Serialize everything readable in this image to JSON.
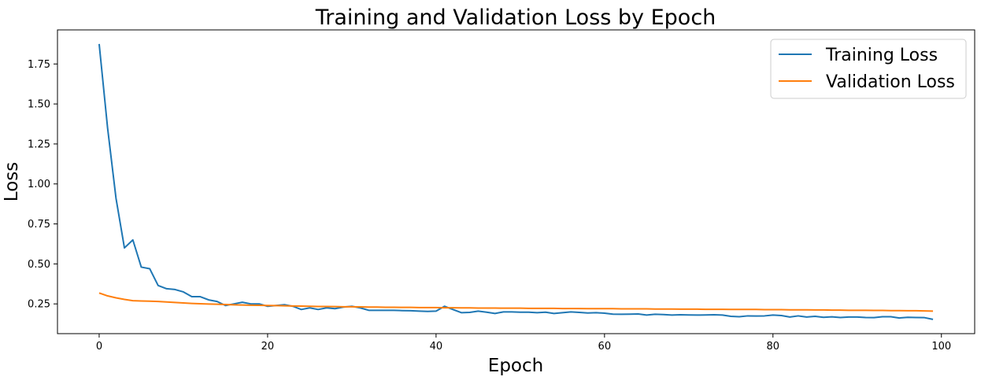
{
  "chart_data": {
    "type": "line",
    "title": "Training and Validation Loss by Epoch",
    "xlabel": "Epoch",
    "ylabel": "Loss",
    "xlim": [
      -4.95,
      103.95
    ],
    "ylim": [
      0.064,
      1.963
    ],
    "xticks": [
      0,
      20,
      40,
      60,
      80,
      100
    ],
    "xtick_labels": [
      "0",
      "20",
      "40",
      "60",
      "80",
      "100"
    ],
    "yticks": [
      0.25,
      0.5,
      0.75,
      1.0,
      1.25,
      1.5,
      1.75
    ],
    "ytick_labels": [
      "0.25",
      "0.50",
      "0.75",
      "1.00",
      "1.25",
      "1.50",
      "1.75"
    ],
    "grid": false,
    "legend": "top-right",
    "series": [
      {
        "name": "Training Loss",
        "color": "#1f77b4",
        "values": [
          1.875,
          1.35,
          0.91,
          0.6,
          0.65,
          0.48,
          0.47,
          0.365,
          0.345,
          0.34,
          0.325,
          0.295,
          0.295,
          0.275,
          0.265,
          0.24,
          0.25,
          0.26,
          0.25,
          0.25,
          0.235,
          0.24,
          0.245,
          0.235,
          0.215,
          0.225,
          0.215,
          0.225,
          0.22,
          0.23,
          0.235,
          0.225,
          0.21,
          0.21,
          0.21,
          0.21,
          0.208,
          0.207,
          0.205,
          0.203,
          0.205,
          0.235,
          0.215,
          0.195,
          0.197,
          0.205,
          0.198,
          0.19,
          0.2,
          0.2,
          0.198,
          0.198,
          0.195,
          0.198,
          0.19,
          0.195,
          0.2,
          0.197,
          0.193,
          0.195,
          0.192,
          0.186,
          0.185,
          0.186,
          0.187,
          0.18,
          0.185,
          0.183,
          0.18,
          0.182,
          0.181,
          0.18,
          0.181,
          0.182,
          0.18,
          0.172,
          0.17,
          0.175,
          0.174,
          0.175,
          0.18,
          0.177,
          0.168,
          0.175,
          0.168,
          0.172,
          0.166,
          0.169,
          0.165,
          0.168,
          0.168,
          0.165,
          0.164,
          0.17,
          0.17,
          0.162,
          0.166,
          0.165,
          0.164,
          0.153
        ]
      },
      {
        "name": "Validation Loss",
        "color": "#ff7f0e",
        "values": [
          0.318,
          0.3,
          0.288,
          0.278,
          0.27,
          0.268,
          0.267,
          0.265,
          0.262,
          0.259,
          0.256,
          0.253,
          0.251,
          0.249,
          0.248,
          0.246,
          0.244,
          0.243,
          0.242,
          0.241,
          0.24,
          0.239,
          0.238,
          0.237,
          0.236,
          0.235,
          0.234,
          0.234,
          0.233,
          0.232,
          0.232,
          0.231,
          0.23,
          0.23,
          0.229,
          0.229,
          0.228,
          0.228,
          0.227,
          0.227,
          0.227,
          0.226,
          0.226,
          0.225,
          0.225,
          0.224,
          0.224,
          0.224,
          0.223,
          0.223,
          0.223,
          0.222,
          0.222,
          0.222,
          0.222,
          0.221,
          0.221,
          0.221,
          0.22,
          0.22,
          0.22,
          0.22,
          0.219,
          0.219,
          0.219,
          0.219,
          0.218,
          0.218,
          0.218,
          0.217,
          0.217,
          0.217,
          0.216,
          0.216,
          0.216,
          0.215,
          0.215,
          0.215,
          0.215,
          0.214,
          0.214,
          0.214,
          0.213,
          0.213,
          0.213,
          0.212,
          0.212,
          0.211,
          0.211,
          0.21,
          0.21,
          0.21,
          0.209,
          0.209,
          0.208,
          0.208,
          0.207,
          0.207,
          0.206,
          0.205
        ]
      }
    ]
  }
}
